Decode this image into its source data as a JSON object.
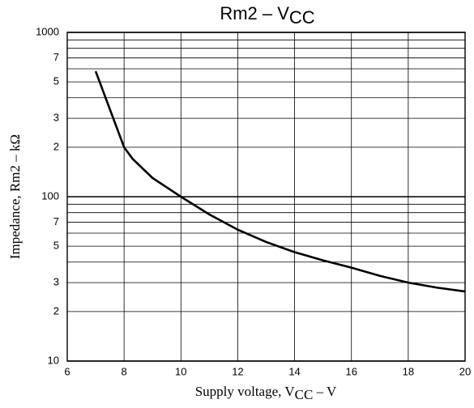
{
  "chart_data": {
    "type": "line",
    "title": [
      "Rm2  –  V",
      "CC"
    ],
    "x_label": [
      "Supply voltage, V",
      "CC",
      "  –  V"
    ],
    "y_label": "Impedance, Rm2  –  kΩ",
    "x": [
      7,
      8,
      8.3,
      9,
      10,
      11,
      12,
      13,
      14,
      15,
      16,
      17,
      18,
      19,
      20
    ],
    "series": [
      {
        "color": "#000000",
        "values": [
          580,
          200,
          170,
          130,
          100,
          78,
          63,
          53,
          46,
          41,
          37,
          33,
          30,
          28,
          26.5
        ]
      }
    ],
    "xlim": [
      6,
      20
    ],
    "xticks": [
      6,
      8,
      10,
      12,
      14,
      16,
      18,
      20
    ],
    "ylim": [
      10,
      1000
    ],
    "log_y": true,
    "yticks": [
      1000,
      {
        "value": 700,
        "label": "7"
      },
      {
        "value": 500,
        "label": "5"
      },
      {
        "value": 300,
        "label": "3"
      },
      {
        "value": 200,
        "label": "2"
      },
      100,
      {
        "value": 70,
        "label": "7"
      },
      {
        "value": 50,
        "label": "5"
      },
      {
        "value": 30,
        "label": "3"
      },
      {
        "value": 20,
        "label": "2"
      },
      10
    ],
    "minor_yticks": [
      900,
      800,
      600,
      400,
      90,
      80,
      60,
      40
    ],
    "grid": true
  }
}
